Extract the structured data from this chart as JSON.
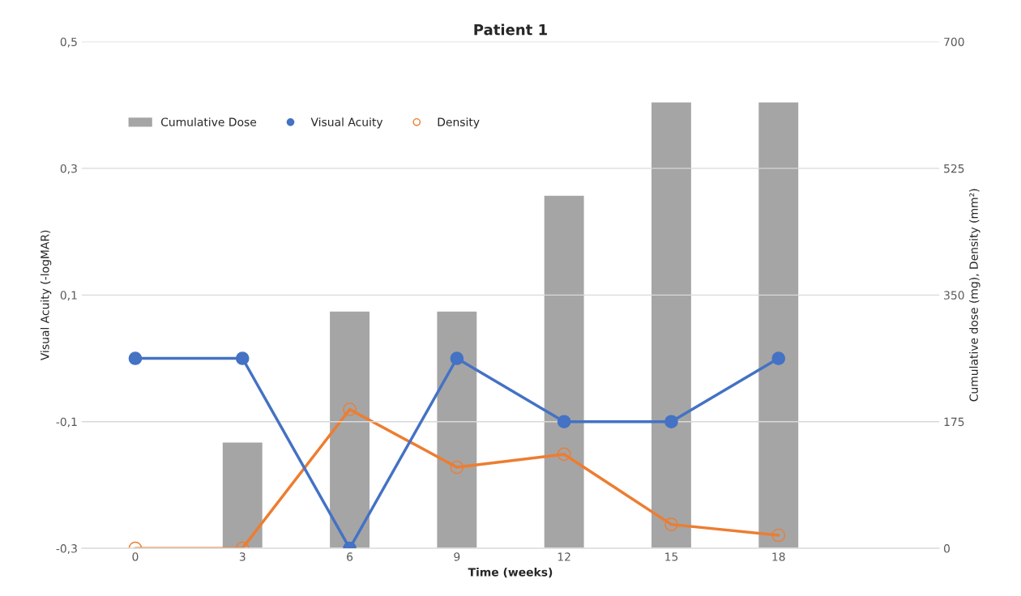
{
  "chart_data": {
    "type": "bar",
    "title": "Patient 1",
    "xlabel": "Time (weeks)",
    "ylabel": "Visual Acuity (-logMAR)",
    "y2label": "Cumulative dose (mg), Density (mm²)",
    "categories": [
      "0",
      "3",
      "6",
      "9",
      "12",
      "15",
      "18",
      null
    ],
    "series": [
      {
        "name": "Cumulative Dose",
        "axis": "y2",
        "color": "#a5a5a5",
        "values": [
          null,
          147,
          328,
          328,
          488,
          617,
          617,
          null
        ]
      },
      {
        "name": "Visual Acuity",
        "type": "line",
        "color": "#4472c4",
        "marker": "circle",
        "values": [
          0,
          0,
          -0.3,
          0,
          -0.1,
          -0.1,
          0,
          null
        ]
      },
      {
        "name": "Density",
        "type": "line",
        "axis": "y2",
        "color": "#ed7d31",
        "marker": "circle",
        "values": [
          0,
          0,
          192,
          112,
          130,
          33,
          18,
          null
        ]
      }
    ],
    "ylim": [
      -0.3,
      0.5
    ],
    "yticks": [
      {
        "value": -0.3,
        "label": "-0,3"
      },
      {
        "value": -0.1,
        "label": "-0,1"
      },
      {
        "value": 0.1,
        "label": "0,1"
      },
      {
        "value": 0.3,
        "label": "0,3"
      },
      {
        "value": 0.5,
        "label": "0,5"
      }
    ],
    "y2lim": [
      0,
      700
    ],
    "y2ticks": [
      0,
      175,
      350,
      525,
      700
    ],
    "grid": "y",
    "legend": "top left"
  }
}
